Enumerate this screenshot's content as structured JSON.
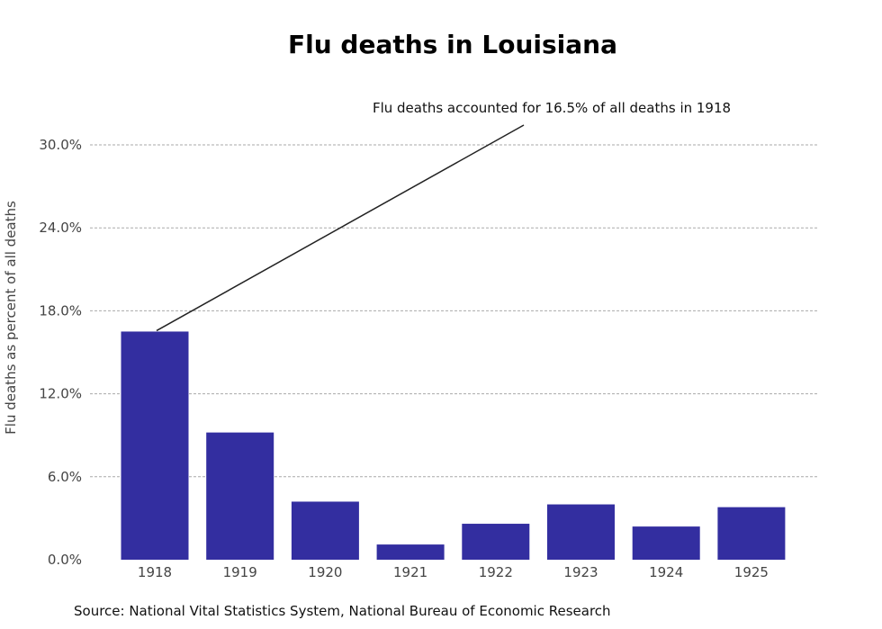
{
  "chart_data": {
    "type": "bar",
    "title": "Flu deaths in Louisiana",
    "xlabel": "",
    "ylabel": "Flu deaths as percent of all deaths",
    "categories": [
      "1918",
      "1919",
      "1920",
      "1921",
      "1922",
      "1923",
      "1924",
      "1925"
    ],
    "values": [
      16.5,
      9.2,
      4.2,
      1.1,
      2.6,
      4.0,
      2.4,
      3.8
    ],
    "ylim": [
      0,
      30
    ],
    "yticks": [
      0,
      6,
      12,
      18,
      24,
      30
    ],
    "ytick_labels": [
      "0.0%",
      "6.0%",
      "12.0%",
      "18.0%",
      "24.0%",
      "30.0%"
    ],
    "grid": true,
    "bar_color": "#332ea0",
    "annotation": {
      "text": "Flu deaths accounted for 16.5% of all deaths in 1918",
      "target_category": "1918",
      "target_value": 16.5
    },
    "source": "Source: National Vital Statistics System, National Bureau of Economic Research"
  }
}
